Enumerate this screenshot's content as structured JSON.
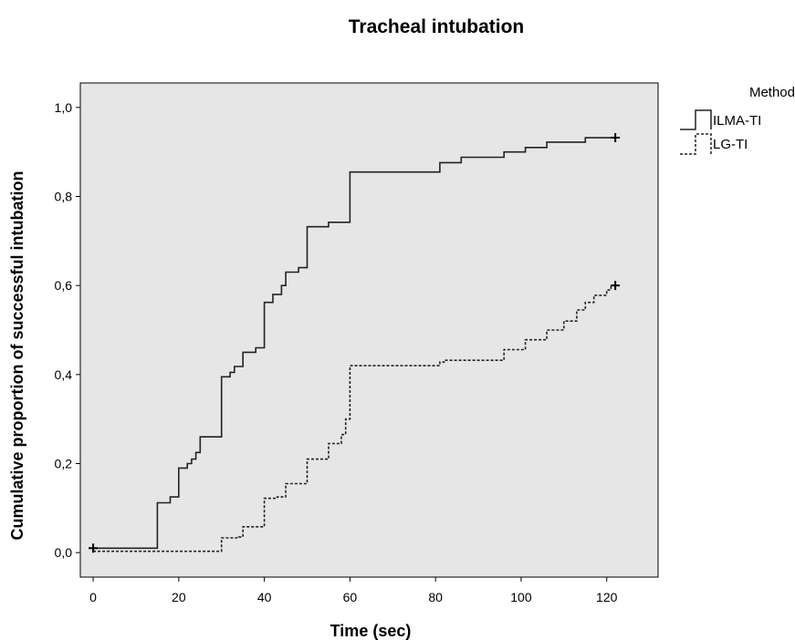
{
  "chart_data": {
    "type": "line",
    "step": true,
    "title": "Tracheal intubation",
    "xlabel": "Time (sec)",
    "ylabel": "Cumulative proportion of successful intubation",
    "xlim": [
      -3,
      132
    ],
    "ylim": [
      -0.055,
      1.055
    ],
    "xticks": [
      0,
      20,
      40,
      60,
      80,
      100,
      120
    ],
    "xtick_labels": [
      "0",
      "20",
      "40",
      "60",
      "80",
      "100",
      "120"
    ],
    "yticks": [
      0,
      0.2,
      0.4,
      0.6,
      0.8,
      1.0
    ],
    "ytick_labels": [
      "0,0",
      "0,2",
      "0,4",
      "0,6",
      "0,8",
      "1,0"
    ],
    "grid": false,
    "plot_background": "#e6e6e6",
    "legend": {
      "title": "Method",
      "position": "right"
    },
    "series": [
      {
        "name": "ILMA-TI",
        "style": "solid",
        "color": "#222222",
        "censored": {
          "x": 122,
          "y": 0.932
        },
        "start_censored": {
          "x": 0,
          "y": 0.01
        },
        "points": [
          [
            0,
            0.01
          ],
          [
            15,
            0.112
          ],
          [
            18,
            0.125
          ],
          [
            20,
            0.19
          ],
          [
            22,
            0.2
          ],
          [
            23,
            0.21
          ],
          [
            24,
            0.225
          ],
          [
            25,
            0.26
          ],
          [
            30,
            0.395
          ],
          [
            32,
            0.405
          ],
          [
            33,
            0.418
          ],
          [
            35,
            0.45
          ],
          [
            38,
            0.46
          ],
          [
            40,
            0.562
          ],
          [
            42,
            0.58
          ],
          [
            44,
            0.6
          ],
          [
            45,
            0.63
          ],
          [
            48,
            0.64
          ],
          [
            50,
            0.732
          ],
          [
            55,
            0.742
          ],
          [
            60,
            0.855
          ],
          [
            81,
            0.876
          ],
          [
            86,
            0.888
          ],
          [
            96,
            0.9
          ],
          [
            101,
            0.91
          ],
          [
            106,
            0.922
          ],
          [
            115,
            0.932
          ],
          [
            122,
            0.932
          ]
        ]
      },
      {
        "name": "LG-TI",
        "style": "dashed",
        "color": "#222222",
        "censored": {
          "x": 122,
          "y": 0.6
        },
        "points": [
          [
            0,
            0.003
          ],
          [
            30,
            0.033
          ],
          [
            34,
            0.035
          ],
          [
            35,
            0.058
          ],
          [
            40,
            0.122
          ],
          [
            43,
            0.125
          ],
          [
            45,
            0.155
          ],
          [
            50,
            0.21
          ],
          [
            55,
            0.245
          ],
          [
            58,
            0.265
          ],
          [
            59,
            0.3
          ],
          [
            60,
            0.42
          ],
          [
            81,
            0.428
          ],
          [
            82,
            0.432
          ],
          [
            96,
            0.456
          ],
          [
            101,
            0.478
          ],
          [
            106,
            0.5
          ],
          [
            110,
            0.52
          ],
          [
            113,
            0.545
          ],
          [
            115,
            0.562
          ],
          [
            117,
            0.578
          ],
          [
            120,
            0.59
          ],
          [
            121,
            0.6
          ],
          [
            122,
            0.6
          ]
        ]
      }
    ]
  }
}
